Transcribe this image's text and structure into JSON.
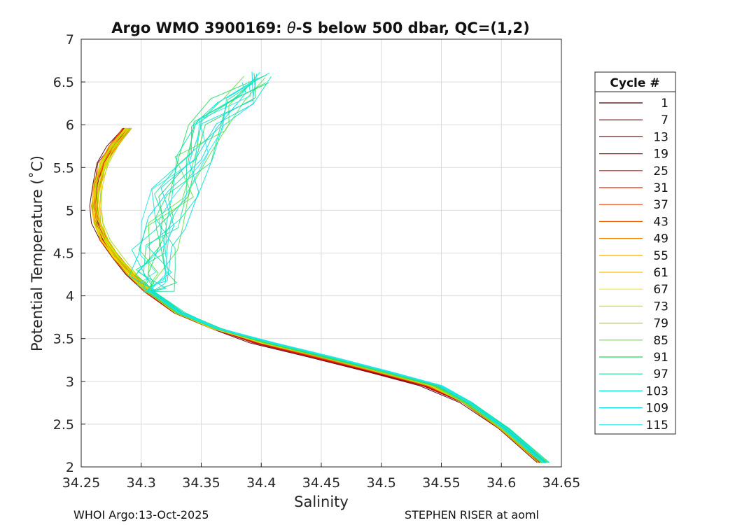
{
  "chart_data": {
    "type": "line",
    "title_prefix": "Argo WMO 3900169: ",
    "title_symbol": "θ",
    "title_suffix": "-S below 500 dbar,  QC=(1,2)",
    "xlabel": "Salinity",
    "ylabel": "Potential Temperature (˚C)",
    "xlim": [
      34.25,
      34.65
    ],
    "ylim": [
      2,
      7
    ],
    "x_ticks": [
      "34.25",
      "34.3",
      "34.35",
      "34.4",
      "34.45",
      "34.5",
      "34.55",
      "34.6",
      "34.65"
    ],
    "y_ticks": [
      "2",
      "2.5",
      "3",
      "3.5",
      "4",
      "4.5",
      "5",
      "5.5",
      "6",
      "6.5",
      "7"
    ],
    "grid": true,
    "legend": {
      "title": "Cycle #",
      "placement": "outside-right",
      "entries": [
        {
          "label": "1",
          "color": "#400000"
        },
        {
          "label": "7",
          "color": "#800000"
        },
        {
          "label": "13",
          "color": "#a80000"
        },
        {
          "label": "19",
          "color": "#cc0000"
        },
        {
          "label": "25",
          "color": "#e01010"
        },
        {
          "label": "31",
          "color": "#e82800"
        },
        {
          "label": "37",
          "color": "#f04000"
        },
        {
          "label": "43",
          "color": "#f06000"
        },
        {
          "label": "49",
          "color": "#f08000"
        },
        {
          "label": "55",
          "color": "#f8a000"
        },
        {
          "label": "61",
          "color": "#ffc000"
        },
        {
          "label": "67",
          "color": "#ffee00"
        },
        {
          "label": "73",
          "color": "#ccee00"
        },
        {
          "label": "79",
          "color": "#a0e000"
        },
        {
          "label": "85",
          "color": "#60e040"
        },
        {
          "label": "91",
          "color": "#20d860"
        },
        {
          "label": "97",
          "color": "#20e090"
        },
        {
          "label": "103",
          "color": "#00e8c8"
        },
        {
          "label": "109",
          "color": "#00d8e8"
        },
        {
          "label": "115",
          "color": "#20e8e8"
        }
      ]
    },
    "base_profile": [
      [
        34.287,
        5.96
      ],
      [
        34.275,
        5.75
      ],
      [
        34.267,
        5.55
      ],
      [
        34.262,
        5.3
      ],
      [
        34.26,
        5.05
      ],
      [
        34.262,
        4.85
      ],
      [
        34.268,
        4.65
      ],
      [
        34.278,
        4.45
      ],
      [
        34.29,
        4.25
      ],
      [
        34.305,
        4.05
      ],
      [
        34.33,
        3.8
      ],
      [
        34.36,
        3.62
      ],
      [
        34.4,
        3.45
      ],
      [
        34.45,
        3.28
      ],
      [
        34.5,
        3.1
      ],
      [
        34.54,
        2.95
      ],
      [
        34.57,
        2.75
      ],
      [
        34.6,
        2.45
      ],
      [
        34.633,
        2.05
      ]
    ],
    "late_cycle_upper_profile": [
      [
        34.405,
        6.55
      ],
      [
        34.385,
        6.3
      ],
      [
        34.365,
        6.0
      ],
      [
        34.348,
        5.6
      ],
      [
        34.335,
        5.2
      ],
      [
        34.325,
        4.85
      ],
      [
        34.318,
        4.55
      ],
      [
        34.315,
        4.25
      ],
      [
        34.317,
        4.1
      ]
    ]
  },
  "footer": {
    "left": "WHOI Argo:13-Oct-2025",
    "right": "STEPHEN RISER at aoml"
  }
}
